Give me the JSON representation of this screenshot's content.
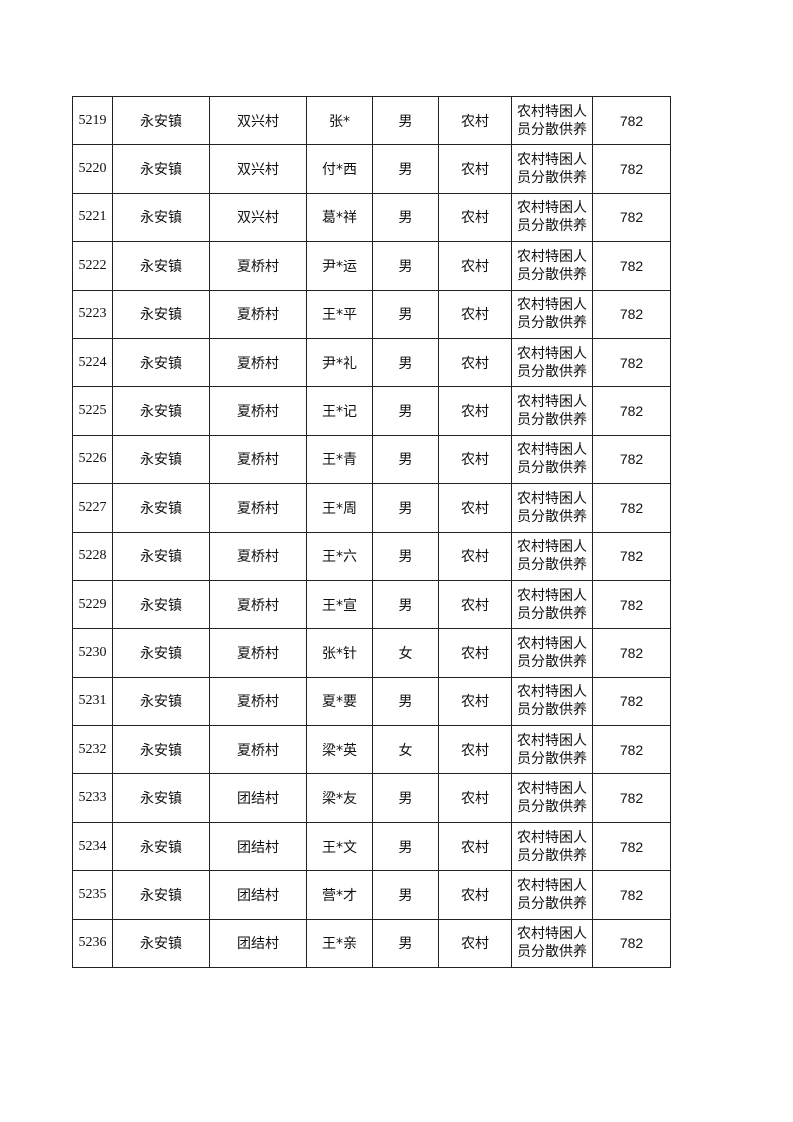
{
  "table": {
    "rows": [
      {
        "id": "5219",
        "town": "永安镇",
        "village": "双兴村",
        "name": "张*",
        "gender": "男",
        "type": "农村",
        "category": "农村特困人员分散供养",
        "amount": "782"
      },
      {
        "id": "5220",
        "town": "永安镇",
        "village": "双兴村",
        "name": "付*西",
        "gender": "男",
        "type": "农村",
        "category": "农村特困人员分散供养",
        "amount": "782"
      },
      {
        "id": "5221",
        "town": "永安镇",
        "village": "双兴村",
        "name": "葛*祥",
        "gender": "男",
        "type": "农村",
        "category": "农村特困人员分散供养",
        "amount": "782"
      },
      {
        "id": "5222",
        "town": "永安镇",
        "village": "夏桥村",
        "name": "尹*运",
        "gender": "男",
        "type": "农村",
        "category": "农村特困人员分散供养",
        "amount": "782"
      },
      {
        "id": "5223",
        "town": "永安镇",
        "village": "夏桥村",
        "name": "王*平",
        "gender": "男",
        "type": "农村",
        "category": "农村特困人员分散供养",
        "amount": "782"
      },
      {
        "id": "5224",
        "town": "永安镇",
        "village": "夏桥村",
        "name": "尹*礼",
        "gender": "男",
        "type": "农村",
        "category": "农村特困人员分散供养",
        "amount": "782"
      },
      {
        "id": "5225",
        "town": "永安镇",
        "village": "夏桥村",
        "name": "王*记",
        "gender": "男",
        "type": "农村",
        "category": "农村特困人员分散供养",
        "amount": "782"
      },
      {
        "id": "5226",
        "town": "永安镇",
        "village": "夏桥村",
        "name": "王*青",
        "gender": "男",
        "type": "农村",
        "category": "农村特困人员分散供养",
        "amount": "782"
      },
      {
        "id": "5227",
        "town": "永安镇",
        "village": "夏桥村",
        "name": "王*周",
        "gender": "男",
        "type": "农村",
        "category": "农村特困人员分散供养",
        "amount": "782"
      },
      {
        "id": "5228",
        "town": "永安镇",
        "village": "夏桥村",
        "name": "王*六",
        "gender": "男",
        "type": "农村",
        "category": "农村特困人员分散供养",
        "amount": "782"
      },
      {
        "id": "5229",
        "town": "永安镇",
        "village": "夏桥村",
        "name": "王*宣",
        "gender": "男",
        "type": "农村",
        "category": "农村特困人员分散供养",
        "amount": "782"
      },
      {
        "id": "5230",
        "town": "永安镇",
        "village": "夏桥村",
        "name": "张*针",
        "gender": "女",
        "type": "农村",
        "category": "农村特困人员分散供养",
        "amount": "782"
      },
      {
        "id": "5231",
        "town": "永安镇",
        "village": "夏桥村",
        "name": "夏*要",
        "gender": "男",
        "type": "农村",
        "category": "农村特困人员分散供养",
        "amount": "782"
      },
      {
        "id": "5232",
        "town": "永安镇",
        "village": "夏桥村",
        "name": "梁*英",
        "gender": "女",
        "type": "农村",
        "category": "农村特困人员分散供养",
        "amount": "782"
      },
      {
        "id": "5233",
        "town": "永安镇",
        "village": "团结村",
        "name": "梁*友",
        "gender": "男",
        "type": "农村",
        "category": "农村特困人员分散供养",
        "amount": "782"
      },
      {
        "id": "5234",
        "town": "永安镇",
        "village": "团结村",
        "name": "王*文",
        "gender": "男",
        "type": "农村",
        "category": "农村特困人员分散供养",
        "amount": "782"
      },
      {
        "id": "5235",
        "town": "永安镇",
        "village": "团结村",
        "name": "营*才",
        "gender": "男",
        "type": "农村",
        "category": "农村特困人员分散供养",
        "amount": "782"
      },
      {
        "id": "5236",
        "town": "永安镇",
        "village": "团结村",
        "name": "王*亲",
        "gender": "男",
        "type": "农村",
        "category": "农村特困人员分散供养",
        "amount": "782"
      }
    ]
  }
}
